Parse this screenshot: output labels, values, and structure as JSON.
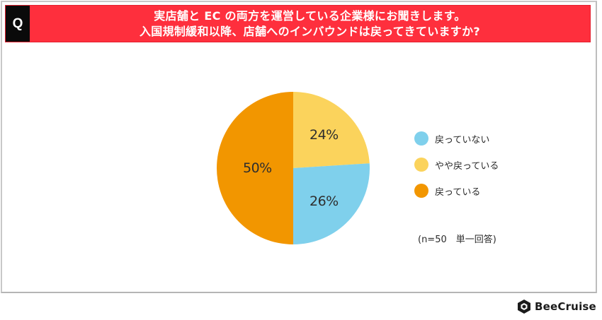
{
  "header": {
    "q_label": "Q",
    "title_line1": "実店舗と EC の両方を運営している企業様にお聞きします。",
    "title_line2": "入国規制緩和以降、店舗へのインバウンドは戻ってきていますか?",
    "colors": {
      "band": "#fe2f3d",
      "q_box": "#0a0a0a"
    }
  },
  "legend": {
    "items": [
      {
        "label": "戻っていない",
        "color": "#7fd0ec"
      },
      {
        "label": "やや戻っている",
        "color": "#fbd35c"
      },
      {
        "label": "戻っている",
        "color": "#f29600"
      }
    ]
  },
  "note": "(n=50　単一回答)",
  "brand": {
    "name": "BeeCruise",
    "icon": "hexagon-logo-icon"
  },
  "chart_data": {
    "type": "pie",
    "title": "入国規制緩和以降、店舗へのインバウンドは戻ってきていますか?",
    "categories": [
      "やや戻っている",
      "戻っていない",
      "戻っている"
    ],
    "values": [
      24,
      26,
      50
    ],
    "labels": [
      "24%",
      "26%",
      "50%"
    ],
    "colors": [
      "#fbd35c",
      "#7fd0ec",
      "#f29600"
    ],
    "start_angle": "12 o'clock",
    "direction": "clockwise",
    "legend_order": [
      "戻っていない",
      "やや戻っている",
      "戻っている"
    ],
    "legend_position": "right",
    "sample_note": "(n=50　単一回答)"
  }
}
